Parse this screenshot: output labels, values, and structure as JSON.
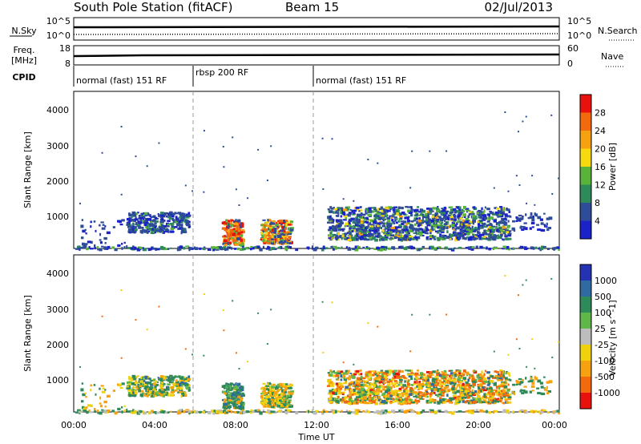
{
  "header": {
    "station": "South Pole Station (fitACF)",
    "beam": "Beam 15",
    "date": "02/Jul/2013"
  },
  "status_panels": {
    "nsky": {
      "label": "N.Sky",
      "ticks": [
        "10^5",
        "10^0"
      ]
    },
    "nsearch": {
      "label": "N.Search",
      "ticks": [
        "10^5",
        "10^0"
      ]
    },
    "freq": {
      "label_line1": "Freq.",
      "label_line2": "[MHz]",
      "ticks": [
        "18",
        "8"
      ]
    },
    "nave": {
      "label": "Nave",
      "ticks": [
        "60",
        "0"
      ]
    },
    "cpid": {
      "label": "CPID",
      "segments": [
        {
          "label": "normal (fast) 151 RF",
          "start_h": 0,
          "end_h": 6
        },
        {
          "label": "rbsp 200 RF",
          "start_h": 6,
          "end_h": 12
        },
        {
          "label": "normal (fast) 151 RF",
          "start_h": 12,
          "end_h": 24
        }
      ]
    }
  },
  "axes": {
    "ylabel": "Slant Range [km]",
    "xlabel": "Time UT",
    "yticks": [
      "1000",
      "2000",
      "3000",
      "4000"
    ],
    "xticks": [
      "00:00",
      "04:00",
      "08:00",
      "12:00",
      "16:00",
      "20:00",
      "00:00"
    ]
  },
  "colorbars": {
    "power": {
      "label": "Power [dB]",
      "ticks": [
        "28",
        "24",
        "20",
        "16",
        "12",
        "8",
        "4"
      ],
      "colors": [
        "#e8110e",
        "#f36a0e",
        "#f6a10f",
        "#f6d90e",
        "#59b33a",
        "#2f8a5a",
        "#2e4c97",
        "#1a22c8"
      ]
    },
    "velocity": {
      "label": "Velocity [m s^-1]",
      "ticks": [
        "1000",
        "500",
        "100",
        "25",
        "-25",
        "-100",
        "-500",
        "-1000"
      ],
      "colors": [
        "#2532b4",
        "#2f6aa0",
        "#2f8a5a",
        "#5fb74a",
        "#bdbdbd",
        "#f0d10e",
        "#f6a10f",
        "#f36a0e",
        "#e8110e"
      ]
    }
  },
  "chart_data": [
    {
      "type": "heatmap",
      "title": "Power [dB]",
      "xlabel": "Time UT",
      "ylabel": "Slant Range [km]",
      "xlim_hours": [
        0,
        24
      ],
      "ylim_km": [
        180,
        4500
      ],
      "colorbar_range_db": [
        0,
        32
      ],
      "scatter_regions": [
        {
          "t": [
            2.6,
            5.7
          ],
          "r": [
            650,
            1200
          ],
          "level": "8-12 dB"
        },
        {
          "t": [
            7.3,
            8.3
          ],
          "r": [
            300,
            1000
          ],
          "level": "16-28 dB"
        },
        {
          "t": [
            9.2,
            10.7
          ],
          "r": [
            350,
            1000
          ],
          "level": "12-28 dB"
        },
        {
          "t": [
            12.5,
            21.5
          ],
          "r": [
            450,
            1350
          ],
          "level": "4-16 dB"
        }
      ]
    },
    {
      "type": "heatmap",
      "title": "Velocity [m s^-1]",
      "xlabel": "Time UT",
      "ylabel": "Slant Range [km]",
      "xlim_hours": [
        0,
        24
      ],
      "ylim_km": [
        180,
        4500
      ],
      "colorbar_range": [
        -1000,
        1000
      ],
      "scatter_regions": [
        {
          "t": [
            2.6,
            5.7
          ],
          "r": [
            650,
            1200
          ],
          "level": "-100 to 100 m/s"
        },
        {
          "t": [
            7.3,
            8.3
          ],
          "r": [
            300,
            1000
          ],
          "level": "25 to 500 m/s"
        },
        {
          "t": [
            9.2,
            10.7
          ],
          "r": [
            350,
            1000
          ],
          "level": "-100 to 100 m/s"
        },
        {
          "t": [
            12.5,
            21.5
          ],
          "r": [
            450,
            1350
          ],
          "level": "-500 to 100 m/s"
        }
      ]
    }
  ]
}
